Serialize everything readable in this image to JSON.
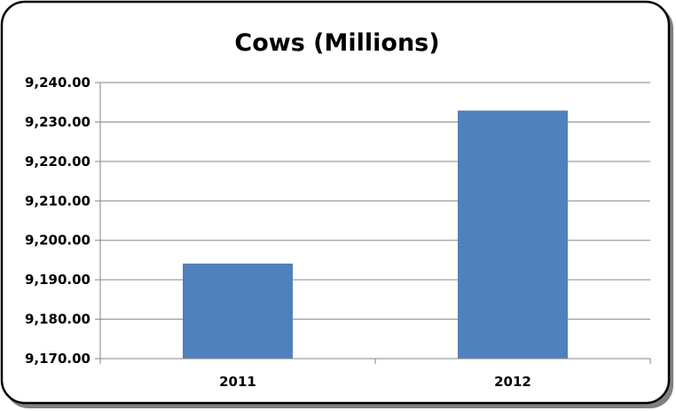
{
  "chart_data": {
    "type": "bar",
    "title": "Cows (Millions)",
    "xlabel": "",
    "ylabel": "",
    "categories": [
      "2011",
      "2012"
    ],
    "values": [
      9194.1,
      9232.9
    ],
    "ylim": [
      9170,
      9240
    ],
    "yticks": [
      9170,
      9180,
      9190,
      9200,
      9210,
      9220,
      9230,
      9240
    ],
    "ytick_labels": [
      "9,170.00",
      "9,180.00",
      "9,190.00",
      "9,200.00",
      "9,210.00",
      "9,220.00",
      "9,230.00",
      "9,240.00"
    ],
    "grid": true,
    "legend": "none",
    "bar_color": "#4F81BD",
    "grid_color": "#868686",
    "border_color": "#000000"
  }
}
